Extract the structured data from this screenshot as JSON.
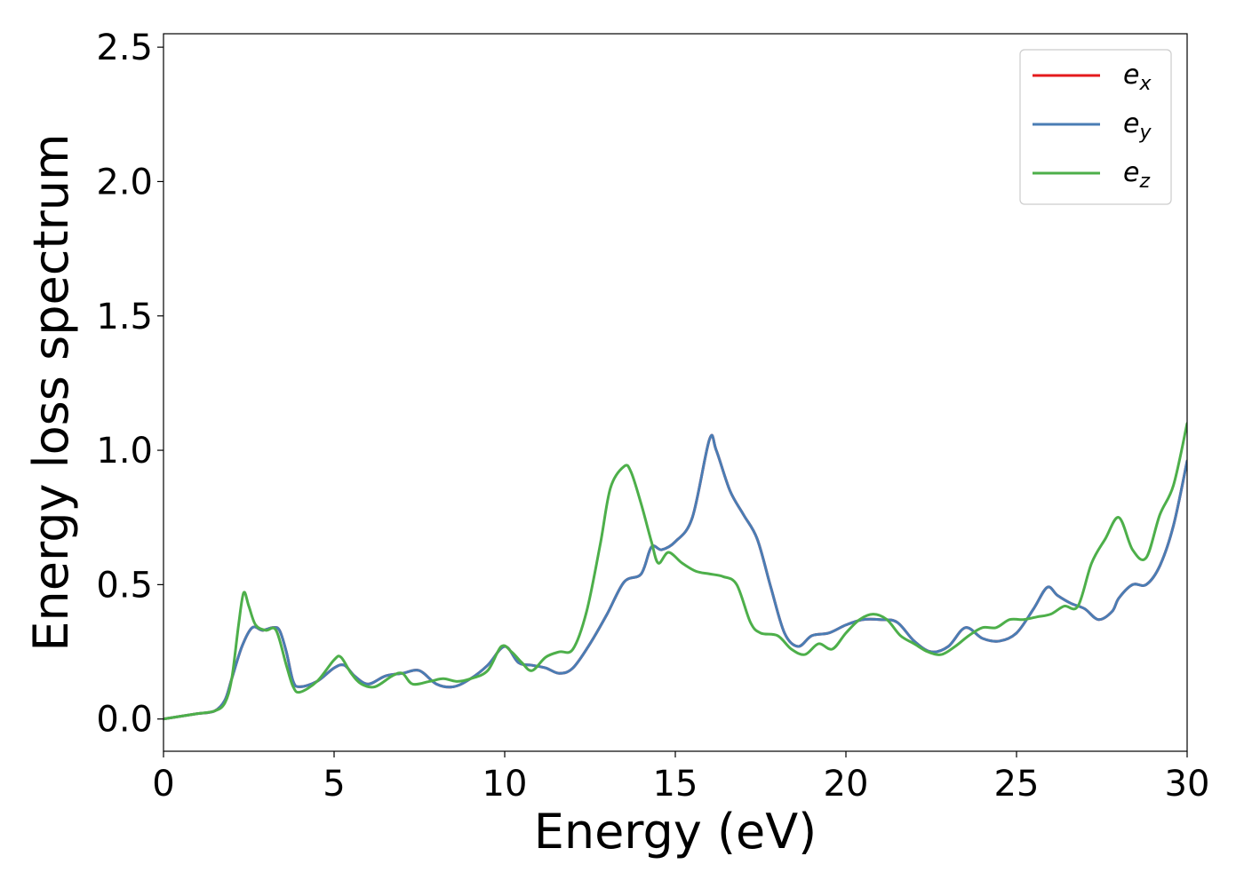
{
  "chart_data": {
    "type": "line",
    "title": "",
    "xlabel": "Energy (eV)",
    "ylabel": "Energy loss spectrum",
    "xlim": [
      0,
      30
    ],
    "ylim": [
      -0.12,
      2.55
    ],
    "xticks": [
      0,
      5,
      10,
      15,
      20,
      25,
      30
    ],
    "yticks": [
      0.0,
      0.5,
      1.0,
      1.5,
      2.0,
      2.5
    ],
    "xtick_labels": [
      "0",
      "5",
      "10",
      "15",
      "20",
      "25",
      "30"
    ],
    "ytick_labels": [
      "0.0",
      "0.5",
      "1.0",
      "1.5",
      "2.0",
      "2.5"
    ],
    "grid": false,
    "legend_position": "top-right",
    "series": [
      {
        "name": "e_x",
        "legend_base": "e",
        "legend_sub": "x",
        "color": "#e41a1c",
        "x": [
          0,
          0.5,
          1.0,
          1.5,
          1.8,
          2.0,
          2.3,
          2.6,
          2.9,
          3.2,
          3.4,
          3.6,
          3.8,
          4.0,
          4.5,
          5.0,
          5.3,
          5.6,
          6.0,
          6.5,
          7.0,
          7.5,
          8.0,
          8.5,
          9.0,
          9.5,
          10.0,
          10.4,
          10.8,
          11.2,
          11.6,
          12.0,
          12.5,
          13.0,
          13.5,
          14.0,
          14.3,
          14.6,
          15.0,
          15.5,
          16.0,
          16.2,
          16.6,
          17.0,
          17.4,
          17.8,
          18.2,
          18.6,
          19.0,
          19.5,
          20.0,
          20.5,
          21.0,
          21.5,
          22.0,
          22.5,
          23.0,
          23.5,
          24.0,
          24.5,
          25.0,
          25.5,
          25.9,
          26.2,
          26.6,
          27.0,
          27.4,
          27.8,
          28.0,
          28.4,
          28.8,
          29.2,
          29.6,
          30.0
        ],
        "y": [
          0.0,
          0.01,
          0.02,
          0.03,
          0.07,
          0.15,
          0.27,
          0.34,
          0.33,
          0.34,
          0.33,
          0.25,
          0.14,
          0.12,
          0.14,
          0.19,
          0.2,
          0.16,
          0.13,
          0.16,
          0.17,
          0.18,
          0.13,
          0.12,
          0.15,
          0.2,
          0.27,
          0.21,
          0.2,
          0.19,
          0.17,
          0.19,
          0.28,
          0.39,
          0.51,
          0.54,
          0.64,
          0.63,
          0.66,
          0.75,
          1.04,
          1.0,
          0.85,
          0.76,
          0.67,
          0.49,
          0.32,
          0.27,
          0.31,
          0.32,
          0.35,
          0.37,
          0.37,
          0.36,
          0.29,
          0.25,
          0.27,
          0.34,
          0.3,
          0.29,
          0.32,
          0.41,
          0.49,
          0.46,
          0.43,
          0.41,
          0.37,
          0.4,
          0.45,
          0.5,
          0.5,
          0.57,
          0.72,
          0.96
        ]
      },
      {
        "name": "e_y",
        "legend_base": "e",
        "legend_sub": "y",
        "color": "#4a7db4",
        "x": [
          0,
          0.5,
          1.0,
          1.5,
          1.8,
          2.0,
          2.3,
          2.6,
          2.9,
          3.2,
          3.4,
          3.6,
          3.8,
          4.0,
          4.5,
          5.0,
          5.3,
          5.6,
          6.0,
          6.5,
          7.0,
          7.5,
          8.0,
          8.5,
          9.0,
          9.5,
          10.0,
          10.4,
          10.8,
          11.2,
          11.6,
          12.0,
          12.5,
          13.0,
          13.5,
          14.0,
          14.3,
          14.6,
          15.0,
          15.5,
          16.0,
          16.2,
          16.6,
          17.0,
          17.4,
          17.8,
          18.2,
          18.6,
          19.0,
          19.5,
          20.0,
          20.5,
          21.0,
          21.5,
          22.0,
          22.5,
          23.0,
          23.5,
          24.0,
          24.5,
          25.0,
          25.5,
          25.9,
          26.2,
          26.6,
          27.0,
          27.4,
          27.8,
          28.0,
          28.4,
          28.8,
          29.2,
          29.6,
          30.0
        ],
        "y": [
          0.0,
          0.01,
          0.02,
          0.03,
          0.07,
          0.15,
          0.27,
          0.34,
          0.33,
          0.34,
          0.33,
          0.25,
          0.14,
          0.12,
          0.14,
          0.19,
          0.2,
          0.16,
          0.13,
          0.16,
          0.17,
          0.18,
          0.13,
          0.12,
          0.15,
          0.2,
          0.27,
          0.21,
          0.2,
          0.19,
          0.17,
          0.19,
          0.28,
          0.39,
          0.51,
          0.54,
          0.64,
          0.63,
          0.66,
          0.75,
          1.04,
          1.0,
          0.85,
          0.76,
          0.67,
          0.49,
          0.32,
          0.27,
          0.31,
          0.32,
          0.35,
          0.37,
          0.37,
          0.36,
          0.29,
          0.25,
          0.27,
          0.34,
          0.3,
          0.29,
          0.32,
          0.41,
          0.49,
          0.46,
          0.43,
          0.41,
          0.37,
          0.4,
          0.45,
          0.5,
          0.5,
          0.57,
          0.72,
          0.96
        ]
      },
      {
        "name": "e_z",
        "legend_base": "e",
        "legend_sub": "z",
        "color": "#4daf4a",
        "x": [
          0,
          0.5,
          1.0,
          1.5,
          1.8,
          2.0,
          2.2,
          2.35,
          2.5,
          2.7,
          3.0,
          3.3,
          3.6,
          3.8,
          4.0,
          4.5,
          5.0,
          5.2,
          5.5,
          5.8,
          6.2,
          6.7,
          7.0,
          7.3,
          7.8,
          8.2,
          8.6,
          9.0,
          9.5,
          9.9,
          10.2,
          10.5,
          10.8,
          11.2,
          11.6,
          12.0,
          12.4,
          12.8,
          13.1,
          13.5,
          13.7,
          14.0,
          14.3,
          14.5,
          14.8,
          15.2,
          15.6,
          16.0,
          16.4,
          16.8,
          17.2,
          17.5,
          18.0,
          18.4,
          18.8,
          19.2,
          19.6,
          20.0,
          20.4,
          20.8,
          21.2,
          21.6,
          22.0,
          22.4,
          22.8,
          23.2,
          23.6,
          24.0,
          24.4,
          24.8,
          25.2,
          25.6,
          26.0,
          26.4,
          26.8,
          27.2,
          27.6,
          28.0,
          28.4,
          28.8,
          29.2,
          29.6,
          30.0
        ],
        "y": [
          0.0,
          0.01,
          0.02,
          0.03,
          0.06,
          0.15,
          0.35,
          0.47,
          0.42,
          0.35,
          0.33,
          0.33,
          0.2,
          0.12,
          0.1,
          0.14,
          0.22,
          0.23,
          0.17,
          0.13,
          0.12,
          0.16,
          0.17,
          0.13,
          0.14,
          0.15,
          0.14,
          0.15,
          0.18,
          0.27,
          0.25,
          0.21,
          0.18,
          0.23,
          0.25,
          0.26,
          0.4,
          0.65,
          0.86,
          0.94,
          0.92,
          0.8,
          0.66,
          0.58,
          0.62,
          0.58,
          0.55,
          0.54,
          0.53,
          0.5,
          0.36,
          0.32,
          0.31,
          0.26,
          0.24,
          0.28,
          0.26,
          0.32,
          0.37,
          0.39,
          0.37,
          0.31,
          0.28,
          0.25,
          0.24,
          0.27,
          0.31,
          0.34,
          0.34,
          0.37,
          0.37,
          0.38,
          0.39,
          0.42,
          0.42,
          0.58,
          0.67,
          0.75,
          0.63,
          0.6,
          0.76,
          0.87,
          1.1
        ]
      }
    ]
  }
}
